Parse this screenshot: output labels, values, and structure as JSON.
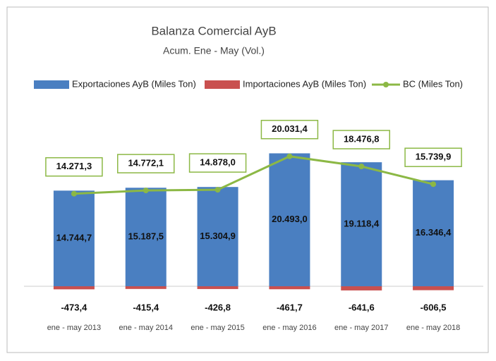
{
  "chart_data": {
    "type": "bar",
    "title": "Balanza Comercial AyB",
    "subtitle": "Acum. Ene - May (Vol.)",
    "categories": [
      "ene - may 2013",
      "ene - may 2014",
      "ene - may 2015",
      "ene - may 2016",
      "ene - may 2017",
      "ene - may 2018"
    ],
    "series": [
      {
        "name": "Exportaciones AyB (Miles Ton)",
        "color": "#4a7fc1",
        "type": "bar",
        "values": [
          14744.7,
          15187.5,
          15304.9,
          20493.0,
          19118.4,
          16346.4
        ],
        "value_labels": [
          "14.744,7",
          "15.187,5",
          "15.304,9",
          "20.493,0",
          "19.118,4",
          "16.346,4"
        ]
      },
      {
        "name": "Importaciones AyB (Miles Ton)",
        "color": "#c9504f",
        "type": "bar",
        "values": [
          -473.4,
          -415.4,
          -426.8,
          -461.7,
          -641.6,
          -606.5
        ],
        "value_labels": [
          "-473,4",
          "-415,4",
          "-426,8",
          "-461,7",
          "-641,6",
          "-606,5"
        ]
      },
      {
        "name": "BC (Miles Ton)",
        "color": "#8cb845",
        "type": "line",
        "values": [
          14271.3,
          14772.1,
          14878.0,
          20031.4,
          18476.8,
          15739.9
        ],
        "value_labels": [
          "14.271,3",
          "14.772,1",
          "14.878,0",
          "20.031,4",
          "18.476,8",
          "15.739,9"
        ]
      }
    ],
    "ylim": [
      -5000,
      25000
    ],
    "legend": "top"
  }
}
